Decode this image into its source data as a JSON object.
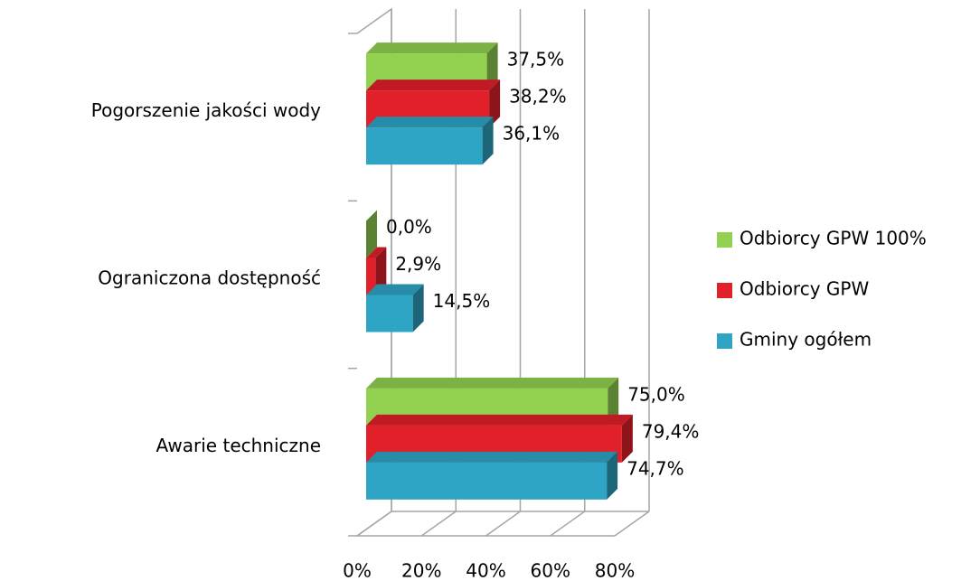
{
  "chart_data": {
    "type": "bar3d",
    "orientation": "horizontal",
    "categories": [
      "Pogorszenie jakości wody",
      "Ograniczona dostępność",
      "Awarie techniczne"
    ],
    "series": [
      {
        "name": "Odbiorcy GPW 100%",
        "color": "#92d050",
        "values": [
          37.5,
          0.0,
          75.0
        ],
        "value_labels": [
          "37,5%",
          "0,0%",
          "75,0%"
        ]
      },
      {
        "name": "Odbiorcy GPW",
        "color": "#e2202a",
        "values": [
          38.2,
          2.9,
          79.4
        ],
        "value_labels": [
          "38,2%",
          "2,9%",
          "79,4%"
        ]
      },
      {
        "name": "Gminy ogółem",
        "color": "#2ea5c4",
        "values": [
          36.1,
          14.5,
          74.7
        ],
        "value_labels": [
          "36,1%",
          "14,5%",
          "74,7%"
        ]
      }
    ],
    "xlim": [
      0,
      80
    ],
    "xticks": [
      {
        "value": 0,
        "label": "0%"
      },
      {
        "value": 20,
        "label": "20%"
      },
      {
        "value": 40,
        "label": "40%"
      },
      {
        "value": 60,
        "label": "60%"
      },
      {
        "value": 80,
        "label": "80%"
      }
    ],
    "grid": true,
    "legend": "right"
  }
}
